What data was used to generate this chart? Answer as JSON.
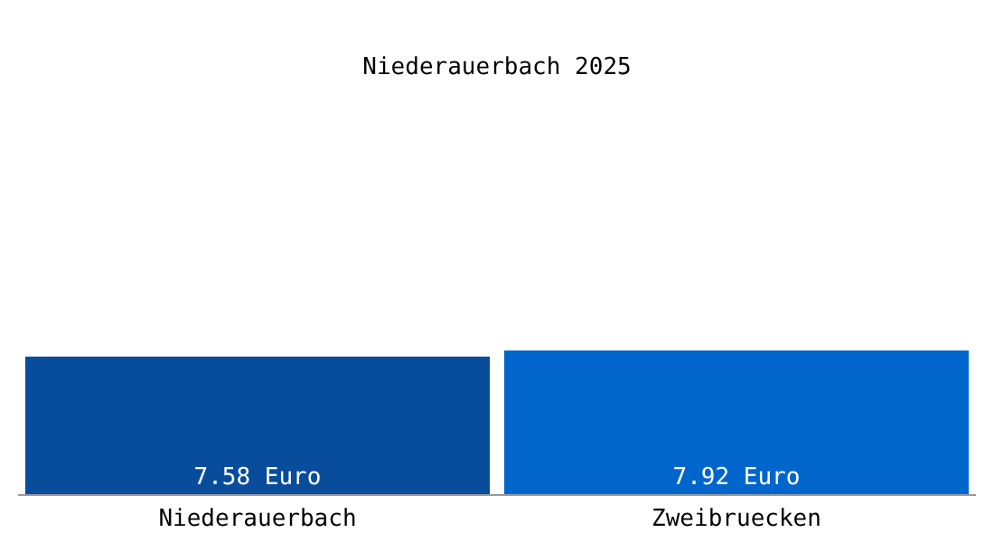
{
  "chart_data": {
    "type": "bar",
    "title": "Niederauerbach 2025",
    "categories": [
      "Niederauerbach",
      "Zweibruecken"
    ],
    "values": [
      7.58,
      7.92
    ],
    "colors": [
      "#084c9c",
      "#0066cc"
    ],
    "value_labels": [
      "7.58 Euro",
      "7.92 Euro"
    ],
    "legend": false,
    "grid": false
  }
}
